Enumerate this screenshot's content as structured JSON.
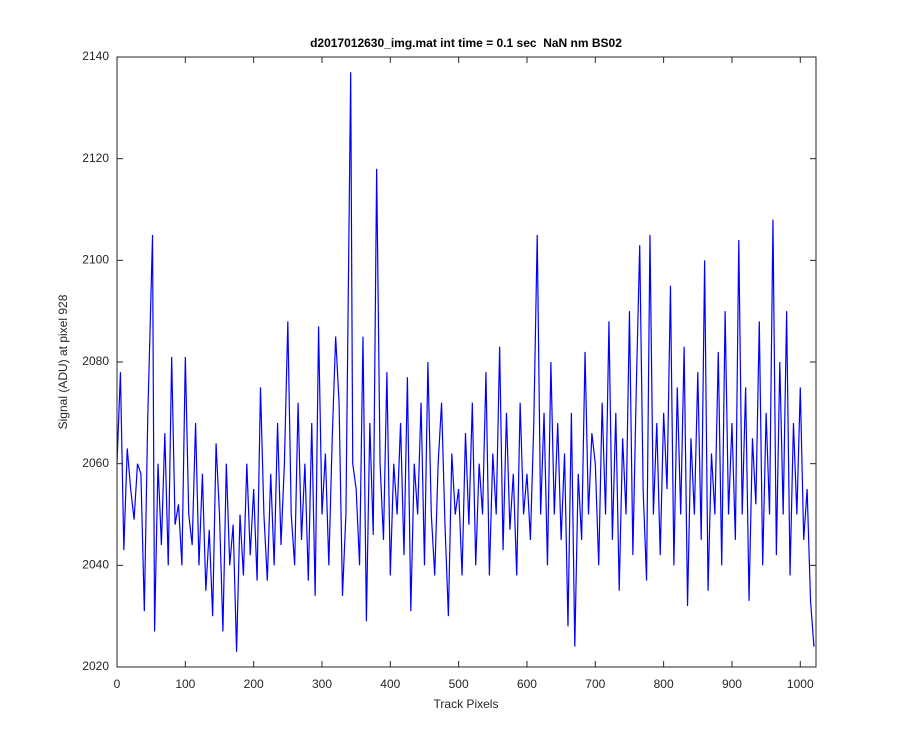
{
  "chart_data": {
    "type": "line",
    "title": "d2017012630_img.mat int time = 0.1 sec  NaN nm BS02",
    "x_label": "Track Pixels",
    "y_label": "Signal (ADU) at pixel 928",
    "xlim": [
      0,
      1023
    ],
    "ylim": [
      2020,
      2140
    ],
    "xticks": [
      0,
      100,
      200,
      300,
      400,
      500,
      600,
      700,
      800,
      900,
      1000
    ],
    "yticks": [
      2020,
      2040,
      2060,
      2080,
      2100,
      2120,
      2140
    ],
    "grid": false,
    "x": [
      0,
      5,
      10,
      15,
      20,
      25,
      30,
      35,
      40,
      45,
      52,
      55,
      60,
      65,
      70,
      75,
      80,
      85,
      90,
      95,
      100,
      105,
      110,
      115,
      120,
      125,
      130,
      135,
      140,
      145,
      150,
      155,
      160,
      165,
      170,
      175,
      180,
      185,
      190,
      195,
      200,
      205,
      210,
      215,
      220,
      225,
      230,
      235,
      240,
      245,
      250,
      255,
      260,
      265,
      270,
      275,
      280,
      285,
      290,
      295,
      300,
      305,
      310,
      315,
      320,
      325,
      330,
      335,
      342,
      345,
      350,
      355,
      360,
      365,
      370,
      375,
      380,
      385,
      390,
      395,
      400,
      405,
      410,
      415,
      420,
      425,
      430,
      435,
      440,
      445,
      450,
      455,
      460,
      465,
      470,
      475,
      480,
      485,
      490,
      495,
      500,
      505,
      510,
      515,
      520,
      525,
      530,
      535,
      540,
      545,
      550,
      555,
      560,
      565,
      570,
      575,
      580,
      585,
      590,
      595,
      600,
      605,
      610,
      615,
      620,
      625,
      630,
      635,
      640,
      645,
      650,
      655,
      660,
      665,
      670,
      675,
      680,
      685,
      690,
      695,
      700,
      705,
      710,
      715,
      720,
      725,
      730,
      735,
      740,
      745,
      750,
      755,
      760,
      765,
      770,
      775,
      780,
      785,
      790,
      795,
      800,
      805,
      810,
      815,
      820,
      825,
      830,
      835,
      840,
      845,
      850,
      855,
      860,
      865,
      870,
      875,
      880,
      885,
      890,
      895,
      900,
      905,
      910,
      915,
      920,
      925,
      930,
      935,
      940,
      945,
      950,
      955,
      960,
      965,
      970,
      975,
      980,
      985,
      990,
      995,
      1000,
      1005,
      1010,
      1015,
      1020
    ],
    "series": [
      {
        "name": "signal",
        "color": "#0000ff",
        "values": [
          2060,
          2078,
          2043,
          2063,
          2055,
          2049,
          2060,
          2058,
          2031,
          2069,
          2105,
          2027,
          2060,
          2044,
          2066,
          2040,
          2081,
          2048,
          2052,
          2040,
          2081,
          2050,
          2044,
          2068,
          2040,
          2058,
          2035,
          2047,
          2030,
          2064,
          2050,
          2027,
          2060,
          2040,
          2048,
          2023,
          2050,
          2038,
          2060,
          2042,
          2055,
          2037,
          2075,
          2050,
          2037,
          2058,
          2040,
          2068,
          2044,
          2060,
          2088,
          2050,
          2040,
          2072,
          2045,
          2060,
          2037,
          2068,
          2034,
          2087,
          2050,
          2062,
          2040,
          2065,
          2085,
          2072,
          2034,
          2050,
          2137,
          2060,
          2055,
          2040,
          2085,
          2029,
          2068,
          2046,
          2118,
          2060,
          2045,
          2078,
          2038,
          2060,
          2050,
          2068,
          2042,
          2077,
          2031,
          2060,
          2050,
          2072,
          2040,
          2080,
          2050,
          2038,
          2060,
          2072,
          2048,
          2030,
          2062,
          2050,
          2055,
          2038,
          2066,
          2048,
          2072,
          2040,
          2060,
          2050,
          2078,
          2038,
          2062,
          2050,
          2083,
          2043,
          2070,
          2047,
          2058,
          2038,
          2072,
          2050,
          2058,
          2045,
          2068,
          2105,
          2050,
          2070,
          2040,
          2080,
          2050,
          2068,
          2045,
          2062,
          2028,
          2070,
          2024,
          2058,
          2045,
          2082,
          2050,
          2066,
          2060,
          2040,
          2072,
          2050,
          2088,
          2045,
          2070,
          2035,
          2065,
          2050,
          2090,
          2042,
          2075,
          2103,
          2055,
          2037,
          2105,
          2050,
          2068,
          2042,
          2070,
          2055,
          2095,
          2040,
          2075,
          2050,
          2083,
          2032,
          2065,
          2050,
          2078,
          2045,
          2100,
          2035,
          2062,
          2050,
          2082,
          2040,
          2090,
          2050,
          2068,
          2045,
          2104,
          2050,
          2075,
          2033,
          2065,
          2052,
          2088,
          2040,
          2070,
          2050,
          2108,
          2042,
          2080,
          2050,
          2090,
          2038,
          2068,
          2050,
          2075,
          2045,
          2055,
          2033,
          2024
        ]
      }
    ]
  }
}
